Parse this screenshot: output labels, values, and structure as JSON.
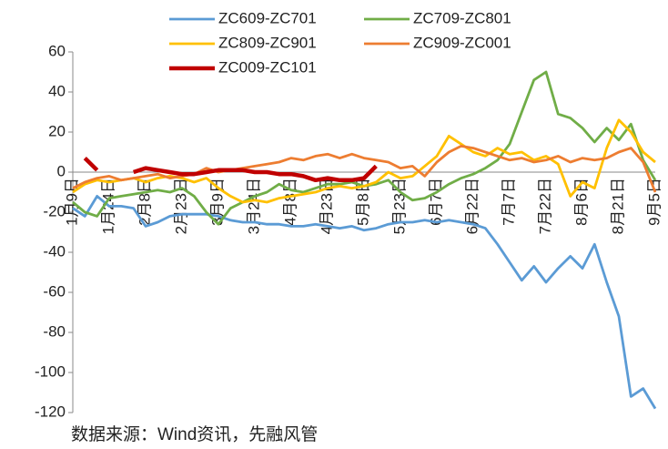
{
  "chart_data": {
    "type": "line",
    "categories": [
      "1月9日",
      null,
      null,
      "1月24日",
      null,
      null,
      "2月8日",
      null,
      null,
      "2月23日",
      null,
      null,
      "3月9日",
      null,
      null,
      "3月24日",
      null,
      null,
      "4月8日",
      null,
      null,
      "4月23日",
      null,
      null,
      "5月8日",
      null,
      null,
      "5月23日",
      null,
      null,
      "6月7日",
      null,
      null,
      "6月22日",
      null,
      null,
      "7月7日",
      null,
      null,
      "7月22日",
      null,
      null,
      "8月6日",
      null,
      null,
      "8月21日",
      null,
      null,
      "9月5日"
    ],
    "series": [
      {
        "name": "ZC609-ZC701",
        "color": "#5b9bd5",
        "values": [
          -18,
          -22,
          -12,
          -17,
          -17,
          -18,
          -27,
          -25,
          -22,
          -21,
          -21,
          -21,
          -22,
          -24,
          -25,
          -25,
          -26,
          -26,
          -27,
          -27,
          -26,
          -27,
          -28,
          -27,
          -29,
          -28,
          -26,
          -25,
          -25,
          -24,
          -25,
          -24,
          -25,
          -26,
          -28,
          -36,
          -45,
          -54,
          -47,
          -55,
          -48,
          -42,
          -48,
          -36,
          -55,
          -72,
          -112,
          -108,
          -118
        ]
      },
      {
        "name": "ZC709-ZC801",
        "color": "#70ad47",
        "values": [
          -15,
          -20,
          -22,
          -13,
          -12,
          -11,
          -10,
          -9,
          -10,
          -8,
          -12,
          -20,
          -26,
          -18,
          -15,
          -12,
          -10,
          -6,
          -9,
          -10,
          -8,
          -6,
          -6,
          -5,
          -7,
          -6,
          -4,
          -10,
          -14,
          -13,
          -10,
          -6,
          -3,
          -1,
          2,
          6,
          14,
          30,
          46,
          50,
          29,
          27,
          22,
          15,
          22,
          16,
          24,
          6,
          -4
        ]
      },
      {
        "name": "ZC809-ZC901",
        "color": "#ffc000",
        "values": [
          -10,
          -6,
          -4,
          -5,
          -4,
          -3,
          -5,
          -3,
          -2,
          -3,
          -5,
          -3,
          -8,
          -12,
          -15,
          -14,
          -15,
          -13,
          -12,
          -11,
          -10,
          -8,
          -7,
          -8,
          -7,
          -5,
          0,
          -3,
          -2,
          3,
          8,
          18,
          14,
          10,
          8,
          12,
          9,
          10,
          6,
          8,
          4,
          -12,
          -5,
          -8,
          12,
          26,
          20,
          10,
          5
        ]
      },
      {
        "name": "ZC909-ZC001",
        "color": "#ed7d31",
        "values": [
          -8,
          -5,
          -3,
          -2,
          -4,
          -3,
          -2,
          -1,
          -3,
          -2,
          -1,
          2,
          0,
          1,
          2,
          3,
          4,
          5,
          7,
          6,
          8,
          9,
          7,
          9,
          7,
          6,
          5,
          2,
          3,
          -2,
          5,
          10,
          13,
          12,
          10,
          8,
          6,
          7,
          5,
          6,
          8,
          5,
          7,
          6,
          7,
          10,
          12,
          5,
          -10
        ]
      },
      {
        "name": "ZC009-ZC101",
        "color": "#c00000",
        "values": [
          null,
          7,
          1,
          null,
          null,
          0,
          2,
          1,
          0,
          -1,
          -1,
          0,
          1,
          1,
          1,
          0,
          0,
          -1,
          -1,
          -2,
          -4,
          -3,
          -4,
          -4,
          -3,
          3,
          null,
          null,
          null,
          null,
          null,
          null,
          null,
          null,
          null,
          null,
          null,
          null,
          null,
          null,
          null,
          null,
          null,
          null,
          null,
          null,
          null,
          null,
          null
        ]
      }
    ],
    "ylim": [
      -120,
      60
    ],
    "yticks": [
      -120,
      -100,
      -80,
      -60,
      -40,
      -20,
      0,
      20,
      40,
      60
    ],
    "grid": false,
    "legend": "top",
    "source": "数据来源：Wind资讯，先融风管"
  }
}
